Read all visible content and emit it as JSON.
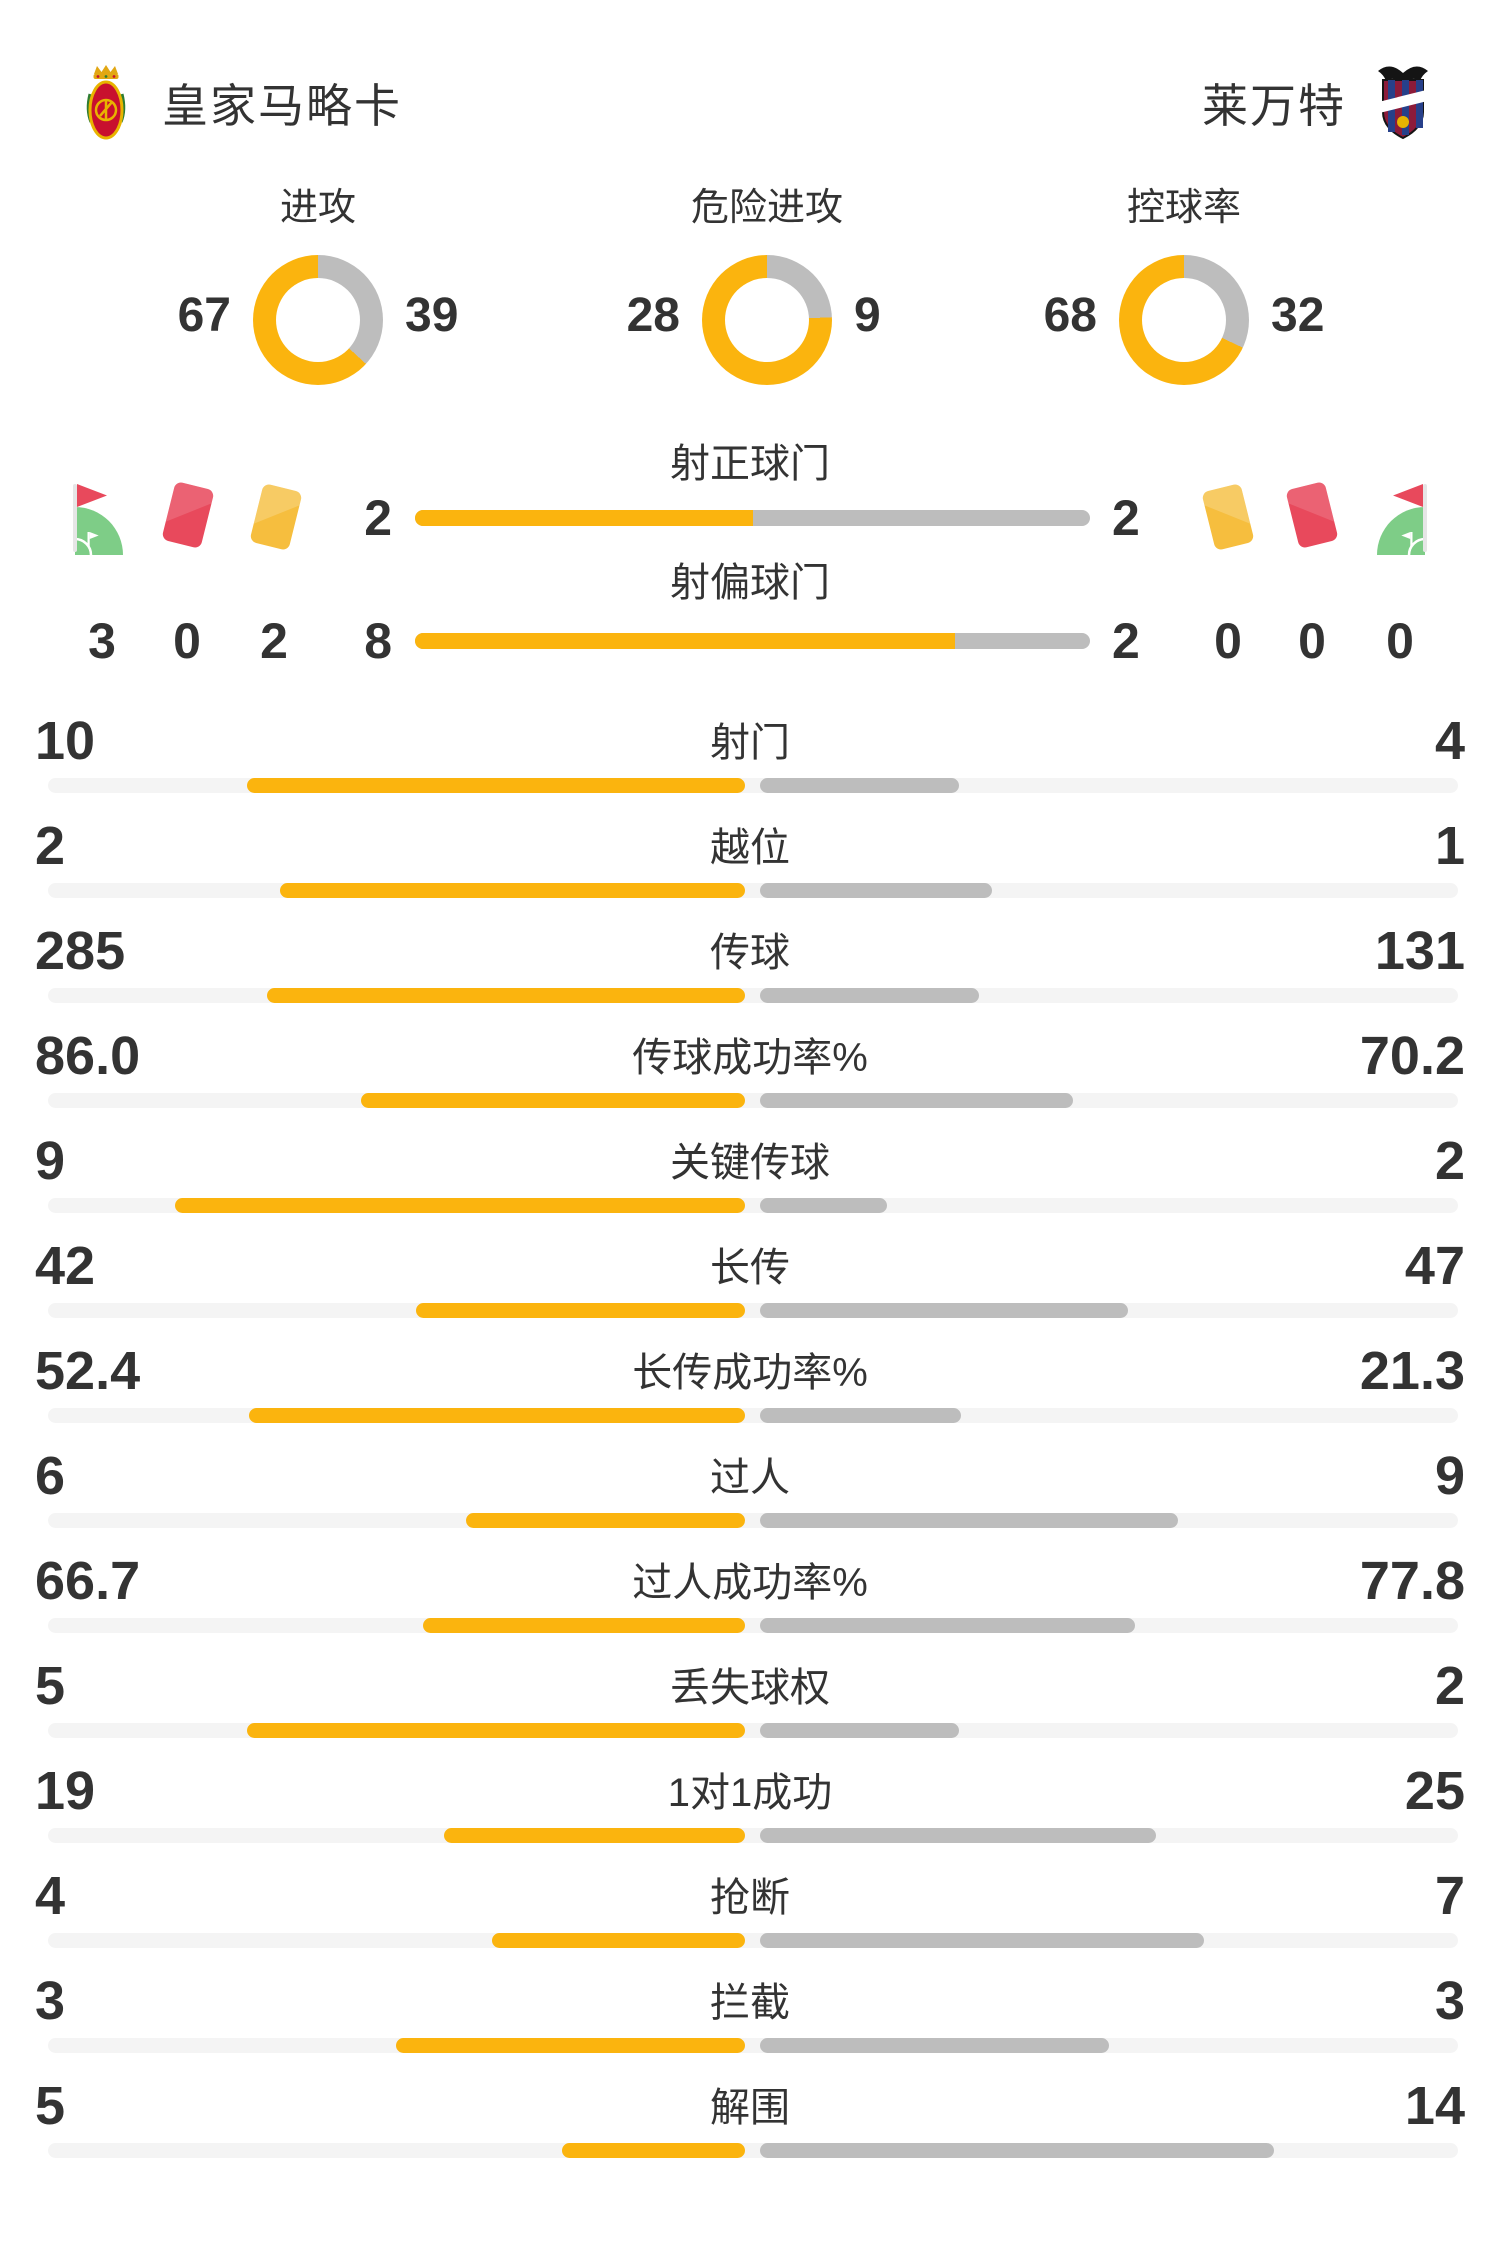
{
  "header": {
    "home_team": "皇家马略卡",
    "away_team": "莱万特"
  },
  "colors": {
    "home_accent": "#FBB40E",
    "away_accent": "#BDBDBD",
    "bar_track": "#F4F4F4",
    "text": "#333333",
    "red_card": "#E8495C",
    "yellow_card": "#F6BE3E",
    "corner_flag_green": "#7ECD87"
  },
  "discipline": {
    "home": [
      {
        "icon": "corner-flag",
        "count": "3"
      },
      {
        "icon": "red-card",
        "count": "0"
      },
      {
        "icon": "yellow-card",
        "count": "2"
      }
    ],
    "away": [
      {
        "icon": "yellow-card",
        "count": "0"
      },
      {
        "icon": "red-card",
        "count": "0"
      },
      {
        "icon": "corner-flag",
        "count": "0"
      }
    ]
  },
  "chart_data": [
    {
      "type": "pie",
      "title": "进攻",
      "series": [
        {
          "name": "皇家马略卡",
          "value": 67
        },
        {
          "name": "莱万特",
          "value": 39
        }
      ]
    },
    {
      "type": "pie",
      "title": "危险进攻",
      "series": [
        {
          "name": "皇家马略卡",
          "value": 28
        },
        {
          "name": "莱万特",
          "value": 9
        }
      ]
    },
    {
      "type": "pie",
      "title": "控球率",
      "series": [
        {
          "name": "皇家马略卡",
          "value": 68
        },
        {
          "name": "莱万特",
          "value": 32
        }
      ]
    },
    {
      "type": "bar",
      "title": "比赛数据对比",
      "categories": [
        "射正球门",
        "射偏球门",
        "射门",
        "越位",
        "传球",
        "传球成功率%",
        "关键传球",
        "长传",
        "长传成功率%",
        "过人",
        "过人成功率%",
        "丢失球权",
        "1对1成功",
        "抢断",
        "拦截",
        "解围"
      ],
      "series": [
        {
          "name": "皇家马略卡",
          "values": [
            "2",
            "8",
            "10",
            "2",
            "285",
            "86.0",
            "9",
            "42",
            "52.4",
            "6",
            "66.7",
            "5",
            "19",
            "4",
            "3",
            "5"
          ]
        },
        {
          "name": "莱万特",
          "values": [
            "2",
            "2",
            "4",
            "1",
            "131",
            "70.2",
            "2",
            "47",
            "21.3",
            "9",
            "77.8",
            "2",
            "25",
            "7",
            "3",
            "14"
          ]
        }
      ],
      "legend_position": "none",
      "grid": false
    }
  ]
}
